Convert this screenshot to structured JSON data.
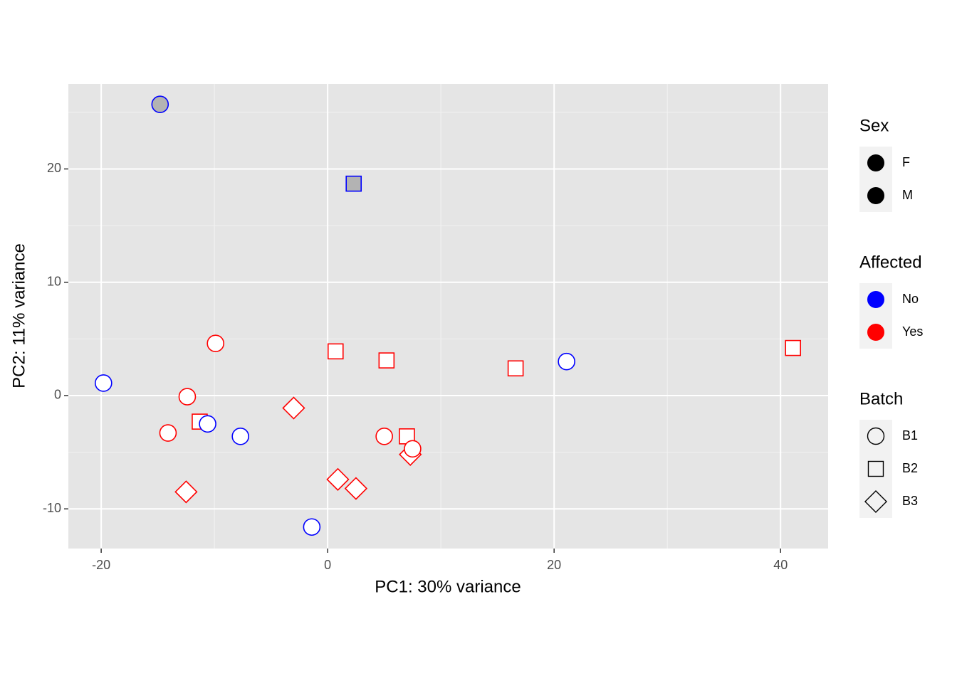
{
  "chart_data": {
    "type": "scatter",
    "x_label": "PC1: 30% variance",
    "y_label": "PC2: 11% variance",
    "xlim": [
      -22.9,
      44.2
    ],
    "ylim": [
      -13.5,
      27.5
    ],
    "xticks": [
      -20,
      0,
      20,
      40
    ],
    "yticks": [
      -10,
      0,
      10,
      20
    ],
    "minor_xticks": [
      -10,
      10,
      30
    ],
    "minor_yticks": [
      -5,
      5,
      15,
      25
    ],
    "grid": true,
    "x": [
      -14.8,
      2.3,
      -19.8,
      -9.9,
      -12.4,
      -14.1,
      -11.3,
      -10.6,
      -7.7,
      -12.5,
      -3.0,
      -1.4,
      0.7,
      5.2,
      0.9,
      2.5,
      5.0,
      7.0,
      7.3,
      7.5,
      16.6,
      21.1,
      41.1
    ],
    "y": [
      25.7,
      18.7,
      1.1,
      4.6,
      -0.1,
      -3.3,
      -2.3,
      -2.5,
      -3.6,
      -8.5,
      -1.1,
      -11.6,
      3.9,
      3.1,
      -7.4,
      -8.2,
      -3.6,
      -3.6,
      -5.2,
      -4.7,
      2.4,
      3.0,
      4.2
    ],
    "sex": [
      "F",
      "F",
      "M",
      "M",
      "M",
      "M",
      "M",
      "M",
      "M",
      "M",
      "M",
      "M",
      "M",
      "M",
      "M",
      "M",
      "M",
      "M",
      "M",
      "M",
      "M",
      "M",
      "M"
    ],
    "affected": [
      "No",
      "No",
      "No",
      "Yes",
      "Yes",
      "Yes",
      "Yes",
      "No",
      "No",
      "Yes",
      "Yes",
      "No",
      "Yes",
      "Yes",
      "Yes",
      "Yes",
      "Yes",
      "Yes",
      "Yes",
      "Yes",
      "Yes",
      "No",
      "Yes"
    ],
    "batch": [
      "B1",
      "B2",
      "B1",
      "B1",
      "B1",
      "B1",
      "B2",
      "B1",
      "B1",
      "B3",
      "B3",
      "B1",
      "B2",
      "B2",
      "B3",
      "B3",
      "B1",
      "B2",
      "B3",
      "B1",
      "B2",
      "B1",
      "B2"
    ],
    "sex_legend": {
      "title": "Sex",
      "labels": [
        "F",
        "M"
      ],
      "fills": [
        "#b3b3b3",
        "#ffffff"
      ],
      "key_color": "#000000"
    },
    "affected_legend": {
      "title": "Affected",
      "labels": [
        "No",
        "Yes"
      ],
      "colors": [
        "#0000ff",
        "#ff0000"
      ]
    },
    "batch_legend": {
      "title": "Batch",
      "labels": [
        "B1",
        "B2",
        "B3"
      ],
      "shapes": [
        "circle",
        "square",
        "diamond"
      ]
    }
  }
}
